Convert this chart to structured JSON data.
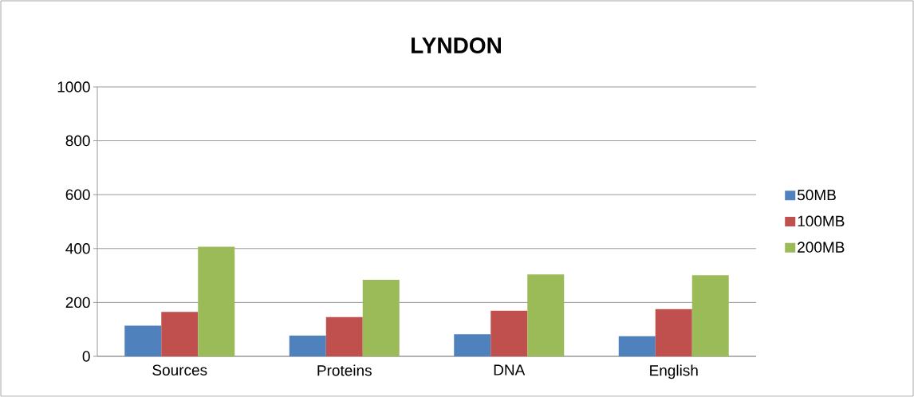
{
  "chart_data": {
    "type": "bar",
    "title": "LYNDON",
    "categories": [
      "Sources",
      "Proteins",
      "DNA",
      "English"
    ],
    "series": [
      {
        "name": "50MB",
        "color": "#4f81bd",
        "values": [
          114,
          77,
          82,
          75
        ]
      },
      {
        "name": "100MB",
        "color": "#c0504d",
        "values": [
          165,
          146,
          169,
          175
        ]
      },
      {
        "name": "200MB",
        "color": "#9bbb59",
        "values": [
          407,
          284,
          304,
          301
        ]
      }
    ],
    "ylim": [
      0,
      1000
    ],
    "yticks": [
      0,
      200,
      400,
      600,
      800,
      1000
    ],
    "grid": "y",
    "legend": "right"
  }
}
